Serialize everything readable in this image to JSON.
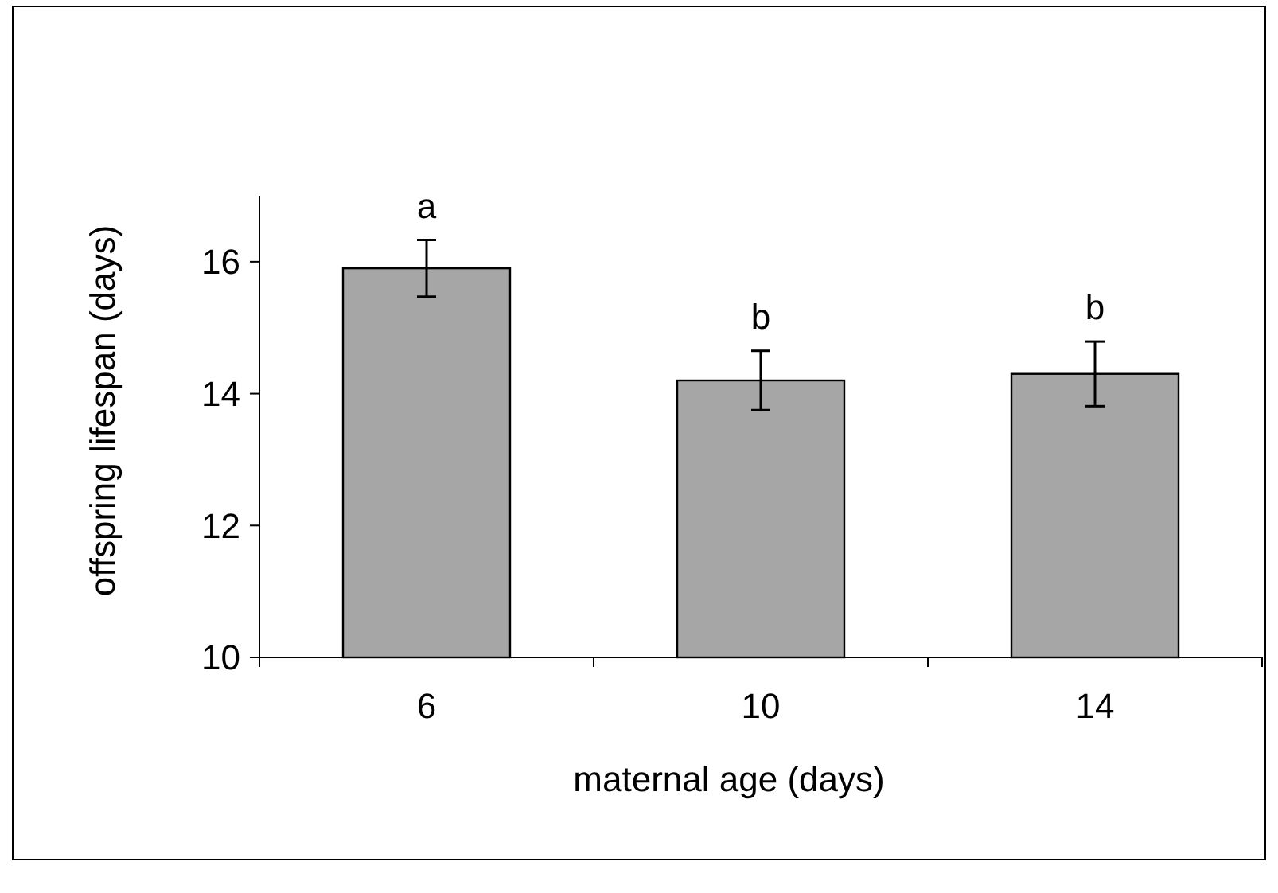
{
  "chart_data": {
    "type": "bar",
    "xlabel": "maternal age (days)",
    "ylabel": "offspring lifespan (days)",
    "categories": [
      "6",
      "10",
      "14"
    ],
    "values": [
      15.9,
      14.2,
      14.3
    ],
    "errors": [
      0.43,
      0.45,
      0.49
    ],
    "color": "#a6a6a6",
    "ylim": [
      10,
      17
    ],
    "yticks": [
      10,
      12,
      14,
      16
    ],
    "grid": false,
    "annotations": [
      "a",
      "b",
      "b"
    ]
  }
}
